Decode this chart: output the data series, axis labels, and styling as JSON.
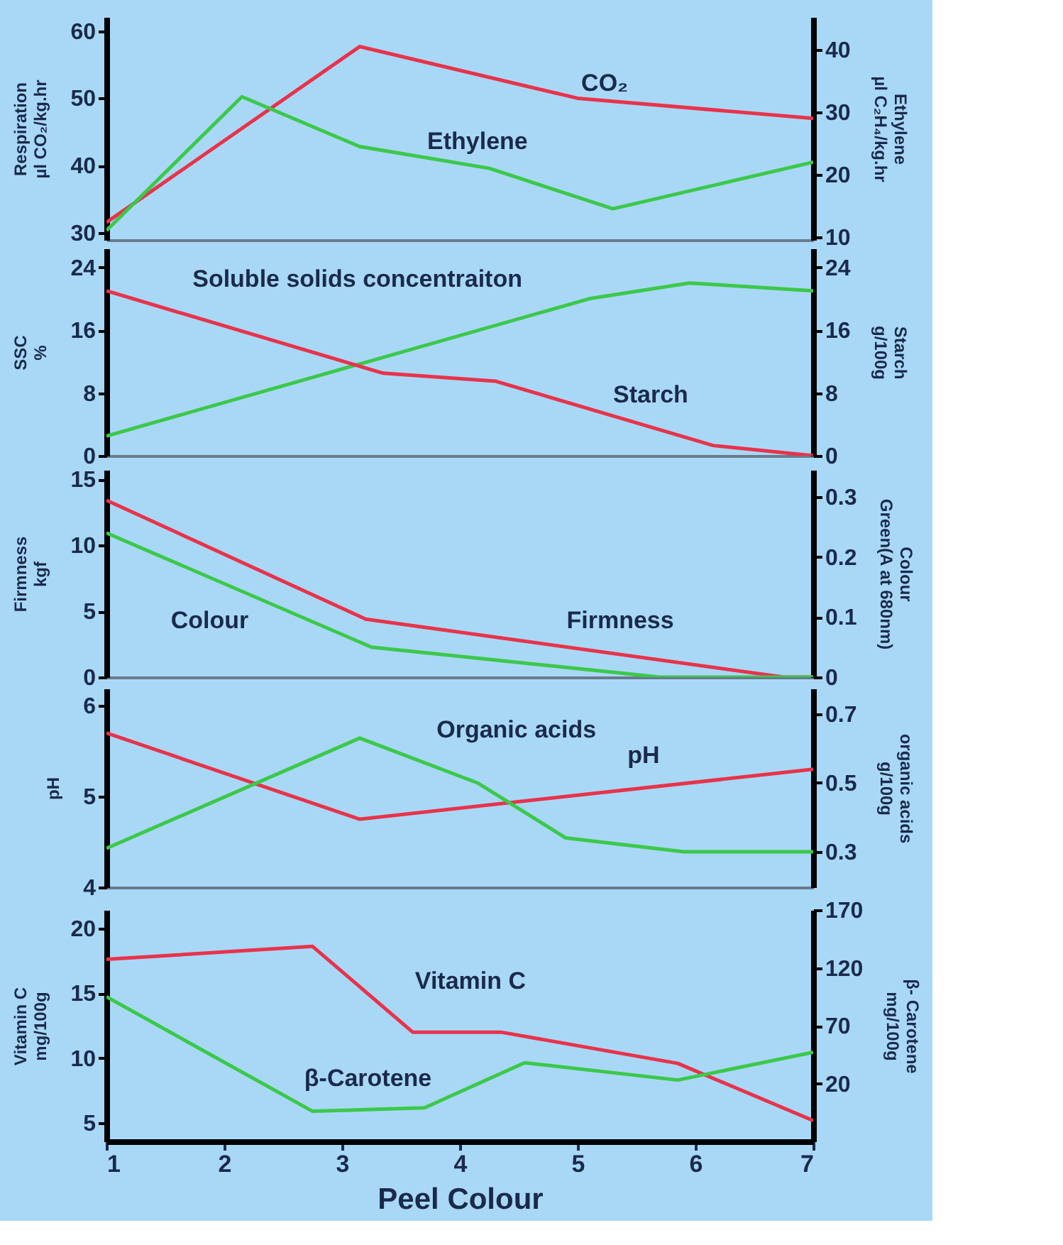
{
  "chart_data": [
    {
      "type": "line",
      "xlim": [
        1,
        7
      ],
      "ylim": [
        28.9,
        62.1
      ],
      "yticks": [
        30,
        40,
        50,
        60
      ],
      "y2lim": [
        9.5,
        45.3
      ],
      "y2ticks": [
        10,
        20,
        30,
        40
      ],
      "ylabel": "Respiration\nµl CO₂/kg.hr",
      "y2label": "Ethylene\nµl C₂H₄/kg.hr",
      "tick_labels": "y",
      "grid": false,
      "series": [
        {
          "name": "CO₂",
          "color": "#e8334a",
          "x": [
            1,
            3.15,
            5,
            7
          ],
          "values": [
            31.5,
            57.7,
            50,
            47
          ]
        },
        {
          "name": "Ethylene",
          "color": "#3cc84a",
          "axis": "y2",
          "x": [
            1,
            2.15,
            3.15,
            4.25,
            5.3,
            7
          ],
          "values": [
            11,
            32.5,
            24.5,
            21,
            14.5,
            22
          ]
        }
      ]
    },
    {
      "type": "line",
      "xlim": [
        1,
        7
      ],
      "ylim": [
        0,
        26.4
      ],
      "yticks": [
        0,
        8,
        16,
        24
      ],
      "y2lim": [
        0,
        26.4
      ],
      "y2ticks": [
        0,
        8,
        16,
        24
      ],
      "ylabel": "SSC\n%",
      "y2label": "Starch\ng/100g",
      "tick_labels": "y",
      "grid": false,
      "series": [
        {
          "name": "Soluble solids concentraiton",
          "color": "#3cc84a",
          "x": [
            1,
            5.1,
            5.95,
            7
          ],
          "values": [
            2.5,
            20,
            22,
            21
          ]
        },
        {
          "name": "Starch",
          "color": "#e8334a",
          "axis": "y2",
          "x": [
            1,
            3.35,
            4.3,
            6.15,
            7
          ],
          "values": [
            21,
            10.5,
            9.5,
            1.3,
            0
          ]
        }
      ]
    },
    {
      "type": "line",
      "xlim": [
        1,
        7
      ],
      "ylim": [
        0,
        15.7
      ],
      "yticks": [
        0,
        5,
        10,
        15
      ],
      "y2lim": [
        0,
        0.345
      ],
      "y2ticks": [
        0,
        0.1,
        0.2,
        0.3
      ],
      "ylabel": "Firmness\nkgf",
      "y2label": "Colour\nGreen(A at 680nm)",
      "tick_labels": "y",
      "grid": false,
      "series": [
        {
          "name": "Firmness",
          "color": "#e8334a",
          "x": [
            1,
            3.2,
            6.75,
            7
          ],
          "values": [
            13.4,
            4.4,
            0,
            0
          ]
        },
        {
          "name": "Colour",
          "color": "#3cc84a",
          "axis": "y2",
          "x": [
            1,
            3.25,
            5.7,
            7
          ],
          "values": [
            0.24,
            0.05,
            0,
            0
          ]
        }
      ]
    },
    {
      "type": "line",
      "xlim": [
        1,
        7
      ],
      "ylim": [
        4,
        6.19
      ],
      "yticks": [
        4,
        5,
        6
      ],
      "y2lim": [
        0.197,
        0.774
      ],
      "y2ticks": [
        0.3,
        0.5,
        0.7
      ],
      "ylabel": "pH",
      "y2label": "organic acids\ng/100g",
      "tick_labels": "y",
      "grid": false,
      "series": [
        {
          "name": "pH",
          "color": "#e8334a",
          "x": [
            1,
            3.15,
            7
          ],
          "values": [
            5.7,
            4.75,
            5.3
          ]
        },
        {
          "name": "Organic acids",
          "color": "#3cc84a",
          "axis": "y2",
          "x": [
            1,
            3.15,
            4.15,
            4.9,
            5.9,
            7
          ],
          "values": [
            0.31,
            0.63,
            0.5,
            0.34,
            0.3,
            0.3
          ]
        }
      ]
    },
    {
      "type": "line",
      "xlim": [
        1,
        7
      ],
      "ylim": [
        3.6,
        21.4
      ],
      "yticks": [
        5,
        10,
        15,
        20
      ],
      "y2lim": [
        -30,
        170
      ],
      "y2ticks": [
        20,
        70,
        120,
        170
      ],
      "xticks": [
        1,
        2,
        3,
        4,
        5,
        6,
        7
      ],
      "xlabel": "Peel Colour",
      "ylabel": "Vitamin C\nmg/100g",
      "y2label": "β- Carotene\nmg/100g",
      "grid": false,
      "series": [
        {
          "name": "Vitamin C",
          "color": "#e8334a",
          "x": [
            1,
            2.75,
            3.6,
            4.35,
            5.85,
            7
          ],
          "values": [
            17.6,
            18.6,
            12,
            12,
            9.6,
            5.2
          ]
        },
        {
          "name": "β-Carotene",
          "color": "#3cc84a",
          "axis": "y2",
          "x": [
            1,
            2.75,
            3.7,
            4.55,
            5.85,
            7
          ],
          "values": [
            95,
            -4,
            -1,
            38,
            23,
            47
          ]
        }
      ]
    }
  ]
}
